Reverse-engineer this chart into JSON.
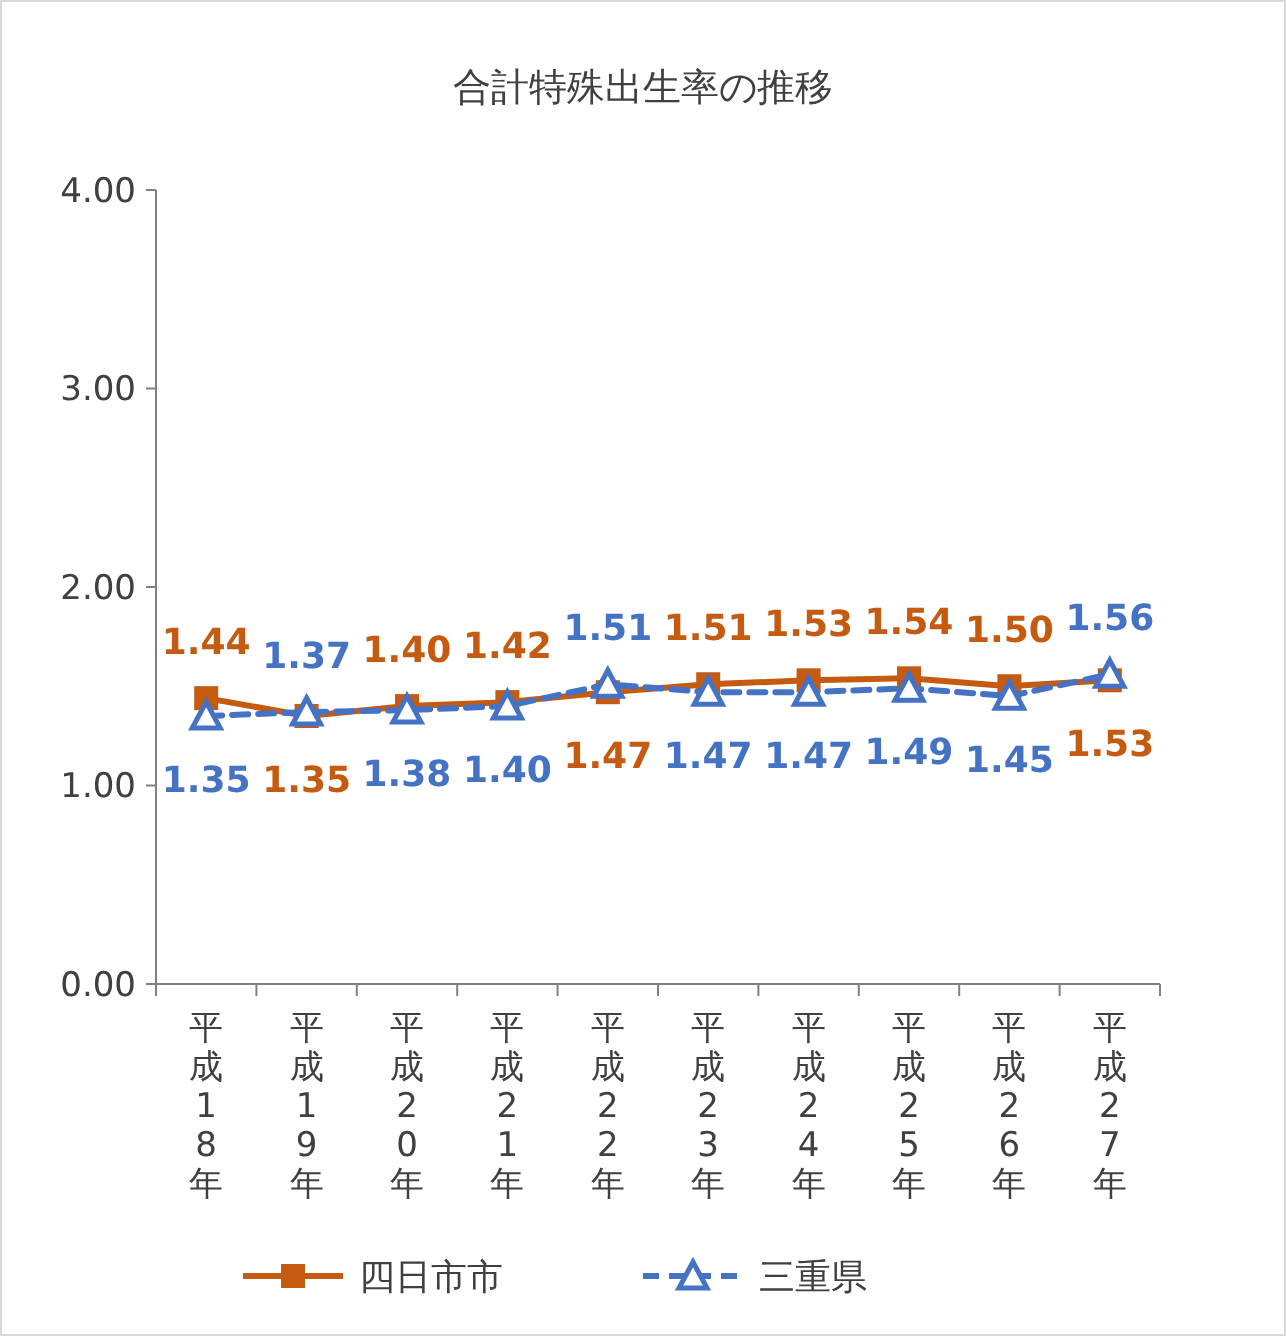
{
  "chart_data": {
    "type": "line",
    "title": "合計特殊出生率の推移",
    "categories": [
      "平成18年",
      "平成19年",
      "平成20年",
      "平成21年",
      "平成22年",
      "平成23年",
      "平成24年",
      "平成25年",
      "平成26年",
      "平成27年"
    ],
    "series": [
      {
        "name": "四日市市",
        "color": "#c55a11",
        "marker": "square",
        "line_style": "solid",
        "values": [
          1.44,
          1.35,
          1.4,
          1.42,
          1.47,
          1.51,
          1.53,
          1.54,
          1.5,
          1.53
        ],
        "value_labels": [
          "1.44",
          "1.35",
          "1.40",
          "1.42",
          "1.47",
          "1.51",
          "1.53",
          "1.54",
          "1.50",
          "1.53"
        ]
      },
      {
        "name": "三重県",
        "color": "#4472c4",
        "marker": "triangle",
        "line_style": "dashed",
        "values": [
          1.35,
          1.37,
          1.38,
          1.4,
          1.51,
          1.47,
          1.47,
          1.49,
          1.45,
          1.56
        ],
        "value_labels": [
          "1.35",
          "1.37",
          "1.38",
          "1.40",
          "1.51",
          "1.47",
          "1.47",
          "1.49",
          "1.45",
          "1.56"
        ]
      }
    ],
    "ylim": [
      0,
      4
    ],
    "yticks": [
      {
        "value": 0,
        "label": "0.00"
      },
      {
        "value": 1,
        "label": "1.00"
      },
      {
        "value": 2,
        "label": "2.00"
      },
      {
        "value": 3,
        "label": "3.00"
      },
      {
        "value": 4,
        "label": "4.00"
      }
    ],
    "grid": false,
    "legend": "bottom"
  }
}
